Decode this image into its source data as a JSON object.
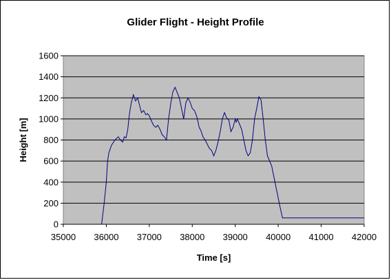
{
  "chart_data": {
    "type": "line",
    "title": "Glider Flight - Height Profile",
    "xlabel": "Time [s]",
    "ylabel": "Height [m]",
    "xlim": [
      35000,
      42000
    ],
    "ylim": [
      0,
      1600
    ],
    "x_ticks": [
      35000,
      36000,
      37000,
      38000,
      39000,
      40000,
      41000,
      42000
    ],
    "y_ticks": [
      0,
      200,
      400,
      600,
      800,
      1000,
      1200,
      1400,
      1600
    ],
    "grid": "horizontal",
    "legend": "none",
    "colors": {
      "plot_background": "#c0c0c0",
      "line": "#00007f",
      "grid": "#000000"
    },
    "series": [
      {
        "x": [
          35890,
          35950,
          36000,
          36030,
          36060,
          36120,
          36200,
          36280,
          36330,
          36380,
          36420,
          36460,
          36500,
          36540,
          36580,
          36630,
          36680,
          36730,
          36780,
          36820,
          36870,
          36920,
          36960,
          37000,
          37050,
          37100,
          37150,
          37200,
          37250,
          37300,
          37350,
          37400,
          37450,
          37500,
          37550,
          37600,
          37650,
          37700,
          37750,
          37800,
          37850,
          37900,
          37950,
          38000,
          38050,
          38080,
          38120,
          38160,
          38200,
          38250,
          38300,
          38350,
          38400,
          38450,
          38500,
          38550,
          38600,
          38650,
          38700,
          38750,
          38800,
          38850,
          38900,
          38950,
          39000,
          39020,
          39050,
          39100,
          39150,
          39200,
          39250,
          39300,
          39350,
          39400,
          39450,
          39500,
          39550,
          39600,
          39650,
          39700,
          39750,
          39800,
          39850,
          39900,
          39950,
          40000,
          40050,
          40100,
          40150,
          40200,
          40250,
          40300,
          40350,
          40400,
          40450,
          40500,
          40550,
          40600,
          40650,
          40700,
          40750,
          40800,
          40850,
          40900,
          41000,
          42000
        ],
        "y": [
          0,
          200,
          400,
          600,
          680,
          750,
          800,
          830,
          800,
          780,
          830,
          820,
          900,
          1050,
          1150,
          1230,
          1170,
          1200,
          1120,
          1060,
          1080,
          1040,
          1050,
          1030,
          980,
          940,
          920,
          940,
          900,
          850,
          830,
          800,
          1000,
          1150,
          1260,
          1300,
          1250,
          1200,
          1100,
          1000,
          1150,
          1200,
          1160,
          1100,
          1080,
          1050,
          1000,
          920,
          890,
          830,
          800,
          760,
          720,
          700,
          650,
          700,
          780,
          880,
          1000,
          1060,
          1010,
          990,
          880,
          920,
          1000,
          970,
          1000,
          950,
          900,
          800,
          700,
          650,
          680,
          800,
          1000,
          1100,
          1210,
          1180,
          1000,
          800,
          650,
          600,
          550,
          450,
          350,
          250,
          150,
          60,
          60,
          60,
          60,
          60,
          60,
          60,
          60,
          60,
          60,
          60,
          60,
          60,
          60,
          60,
          60,
          60,
          60,
          60
        ],
        "note": ""
      }
    ]
  }
}
